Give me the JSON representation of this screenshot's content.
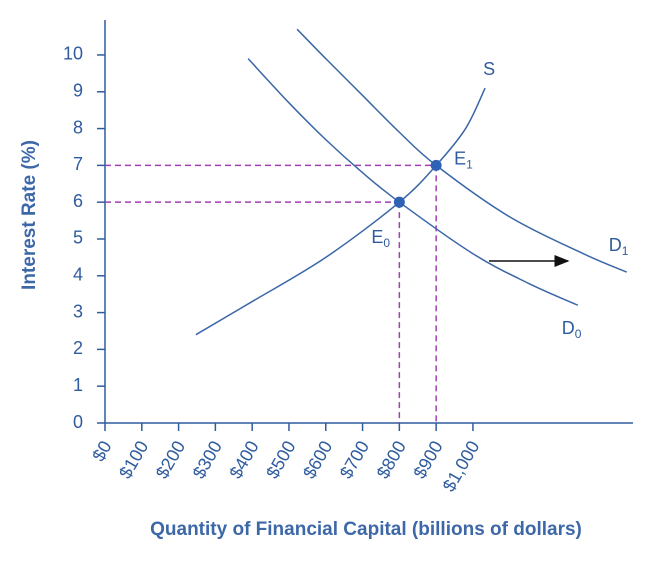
{
  "chart_data": {
    "type": "line",
    "x_label": "Quantity of Financial Capital (billions of dollars)",
    "y_label": "Interest Rate (%)",
    "xlim": [
      0,
      1435
    ],
    "ylim": [
      0,
      10.95
    ],
    "xticks": [
      {
        "value": 0,
        "label": "$0"
      },
      {
        "value": 100,
        "label": "$100"
      },
      {
        "value": 200,
        "label": "$200"
      },
      {
        "value": 300,
        "label": "$300"
      },
      {
        "value": 400,
        "label": "$400"
      },
      {
        "value": 500,
        "label": "$500"
      },
      {
        "value": 600,
        "label": "$600"
      },
      {
        "value": 700,
        "label": "$700"
      },
      {
        "value": 800,
        "label": "$800"
      },
      {
        "value": 900,
        "label": "$900"
      },
      {
        "value": 1000,
        "label": "$1,000"
      }
    ],
    "yticks": [
      0,
      1,
      2,
      3,
      4,
      5,
      6,
      7,
      8,
      9,
      10
    ],
    "series": [
      {
        "name": "S",
        "color": "#3a66a8",
        "x": [
          247,
          400,
          600,
          800,
          900,
          980,
          1033
        ],
        "values": [
          2.4,
          3.3,
          4.5,
          6,
          7,
          8,
          9.1
        ]
      },
      {
        "name": "D",
        "subscript": "0",
        "color": "#3a66a8",
        "x": [
          389,
          500,
          600,
          700,
          800,
          1000,
          1150,
          1285
        ],
        "values": [
          9.9,
          8.7,
          7.7,
          6.8,
          6,
          4.6,
          3.8,
          3.2
        ]
      },
      {
        "name": "D",
        "subscript": "1",
        "color": "#3a66a8",
        "x": [
          522,
          600,
          700,
          800,
          900,
          1100,
          1300,
          1418
        ],
        "values": [
          10.7,
          9.9,
          8.9,
          7.9,
          7,
          5.6,
          4.6,
          4.1
        ]
      }
    ],
    "points": [
      {
        "name": "E",
        "subscript": "0",
        "x": 800,
        "value": 6
      },
      {
        "name": "E",
        "subscript": "1",
        "x": 900,
        "value": 7
      }
    ],
    "point_color": "#2f62b5",
    "guide_color": "#a23fb3"
  }
}
